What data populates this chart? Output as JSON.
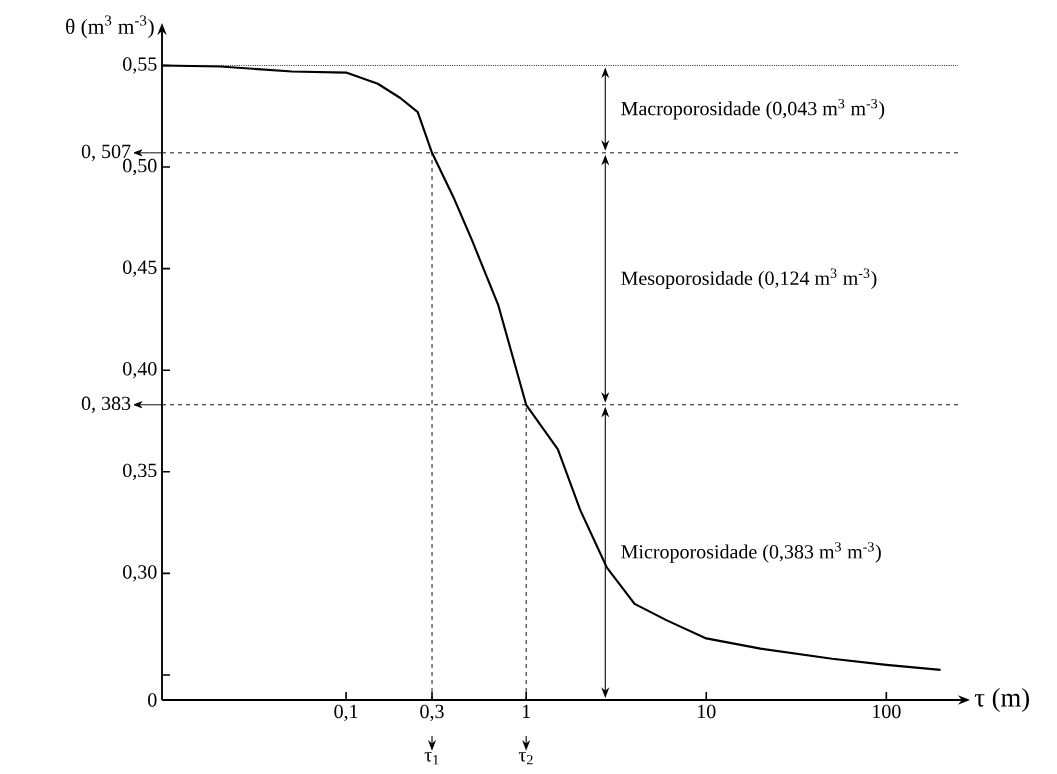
{
  "chart_data": {
    "type": "line",
    "xlabel": "τ (m)",
    "ylabel": "θ (m$^{3}$ m$^{-3}$)",
    "log": "x",
    "xlim": [
      0.0095,
      250
    ],
    "ylim": [
      0.2377,
      0.565
    ],
    "xticks": [
      {
        "value": 0.1,
        "label": "0,1"
      },
      {
        "value": 0.3,
        "label": "0,3"
      },
      1,
      10,
      100
    ],
    "yticks": [
      {
        "value": 0.2377,
        "label": "0"
      },
      {
        "value": 0.25,
        "label": null
      },
      {
        "value": 0.3,
        "label": "0,30"
      },
      {
        "value": 0.35,
        "label": "0,35"
      },
      {
        "value": 0.4,
        "label": "0,40"
      },
      {
        "value": 0.45,
        "label": "0,45"
      },
      {
        "value": 0.5,
        "label": "0,50"
      },
      {
        "value": 0.55,
        "label": "0,55"
      }
    ],
    "x": [
      0.0095,
      0.02,
      0.05,
      0.1,
      0.15,
      0.2,
      0.25,
      0.3,
      0.4,
      0.5,
      0.7,
      1,
      1.5,
      2,
      2.8,
      4,
      6,
      10,
      20,
      50,
      100,
      200
    ],
    "series": [
      {
        "color": "#000000",
        "values": [
          0.55,
          0.5495,
          0.547,
          0.5465,
          0.541,
          0.534,
          0.527,
          0.507,
          0.484,
          0.464,
          0.432,
          0.383,
          0.361,
          0.331,
          0.303,
          0.285,
          0.277,
          0.268,
          0.263,
          0.258,
          0.255,
          0.2525
        ]
      }
    ],
    "ref_lines": [
      {
        "axis": "y",
        "value": 0.55,
        "line_style": "dotted"
      },
      {
        "axis": "y",
        "value": 0.507,
        "label": "0, 507",
        "line_style": "dashed"
      },
      {
        "axis": "y",
        "value": 0.383,
        "label": "0, 383",
        "line_style": "dashed"
      },
      {
        "axis": "x",
        "value": 0.3,
        "label": "τ$_{1}$",
        "line_style": "dashed"
      },
      {
        "axis": "x",
        "value": 1,
        "label": "τ$_{2}$",
        "line_style": "dashed"
      }
    ],
    "annotations": [
      "Macroporosidade (0,043 m$^{3}$ m$^{-3}$)",
      "Mesoporosidade (0,124 m$^{3}$ m$^{-3}$)",
      "Microporosidade (0,383 m$^{3}$ m$^{-3}$)"
    ]
  }
}
